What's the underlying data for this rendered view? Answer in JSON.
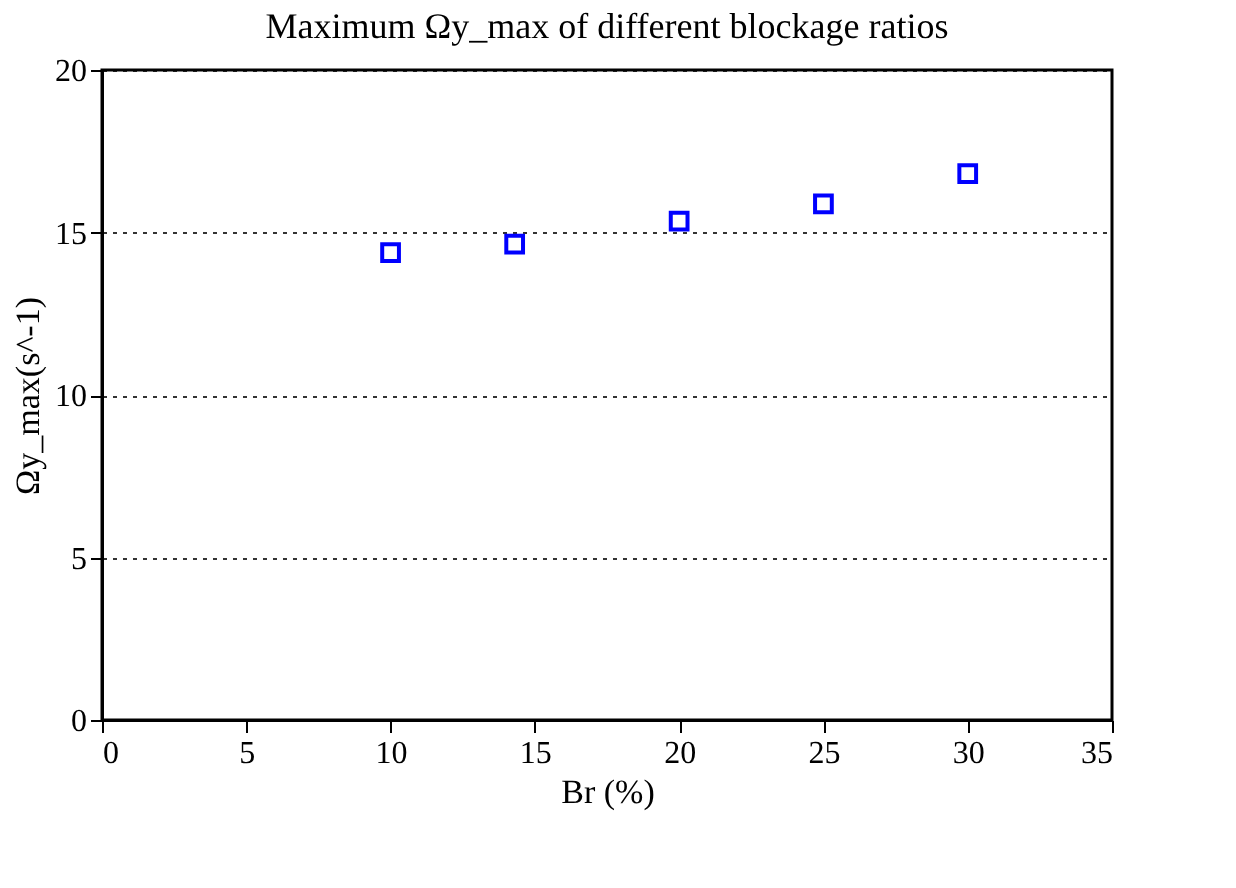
{
  "chart_data": {
    "type": "scatter",
    "title": "Maximum Ωy_max of different blockage ratios",
    "xlabel": "Br (%)",
    "ylabel": "Ωy_max(s^-1)",
    "x": [
      10,
      14.3,
      20,
      25,
      30
    ],
    "series": [
      {
        "color": "#0000ff",
        "values": [
          14.38,
          14.64,
          15.35,
          15.88,
          16.81
        ]
      }
    ],
    "xlim": [
      0,
      35
    ],
    "xticks": [
      0,
      5,
      10,
      15,
      20,
      25,
      30,
      35
    ],
    "ylim": [
      0,
      20
    ],
    "yticks": [
      0,
      5,
      10,
      15,
      20
    ],
    "grid": "y",
    "marker": "square",
    "legend": false
  }
}
